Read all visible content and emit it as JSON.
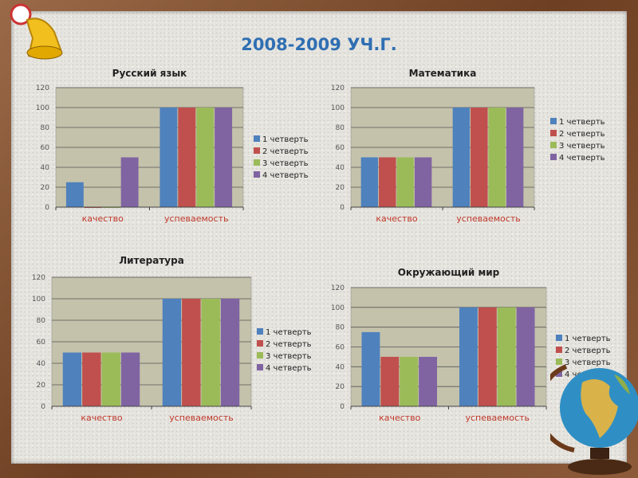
{
  "slide_title": "2008-2009 УЧ.Г.",
  "colors": {
    "q1": "#4f81bd",
    "q2": "#c0504d",
    "q3": "#9bbb59",
    "q4": "#8064a2",
    "plot_bg": "#c4c2ab",
    "title": "#2f6fb2",
    "category": "#c0392b"
  },
  "chart_data": [
    {
      "type": "bar",
      "title": "Русский язык",
      "categories": [
        "качество",
        "успеваемость"
      ],
      "ylim": [
        0,
        120
      ],
      "yticks": [
        0,
        20,
        40,
        60,
        80,
        100,
        120
      ],
      "legend": "right",
      "series": [
        {
          "name": "1 четверть",
          "values": [
            25,
            100
          ]
        },
        {
          "name": "2 четверть",
          "values": [
            0,
            100
          ]
        },
        {
          "name": "3 четверть",
          "values": [
            0,
            100
          ]
        },
        {
          "name": "4 четверть",
          "values": [
            50,
            100
          ]
        }
      ]
    },
    {
      "type": "bar",
      "title": "Математика",
      "categories": [
        "качество",
        "успеваемость"
      ],
      "ylim": [
        0,
        120
      ],
      "yticks": [
        0,
        20,
        40,
        60,
        80,
        100,
        120
      ],
      "legend": "right",
      "series": [
        {
          "name": "1 четверть",
          "values": [
            50,
            100
          ]
        },
        {
          "name": "2 четверть",
          "values": [
            50,
            100
          ]
        },
        {
          "name": "3 четверть",
          "values": [
            50,
            100
          ]
        },
        {
          "name": "4 четверть",
          "values": [
            50,
            100
          ]
        }
      ]
    },
    {
      "type": "bar",
      "title": "Литература",
      "categories": [
        "качество",
        "успеваемость"
      ],
      "ylim": [
        0,
        120
      ],
      "yticks": [
        0,
        20,
        40,
        60,
        80,
        100,
        120
      ],
      "legend": "right",
      "series": [
        {
          "name": "1 четверть",
          "values": [
            50,
            100
          ]
        },
        {
          "name": "2 четверть",
          "values": [
            50,
            100
          ]
        },
        {
          "name": "3 четверть",
          "values": [
            50,
            100
          ]
        },
        {
          "name": "4 четверть",
          "values": [
            50,
            100
          ]
        }
      ]
    },
    {
      "type": "bar",
      "title": "Окружающий мир",
      "categories": [
        "качество",
        "успеваемость"
      ],
      "ylim": [
        0,
        120
      ],
      "yticks": [
        0,
        20,
        40,
        60,
        80,
        100,
        120
      ],
      "legend": "right",
      "series": [
        {
          "name": "1 четверть",
          "values": [
            75,
            100
          ]
        },
        {
          "name": "2 четверть",
          "values": [
            50,
            100
          ]
        },
        {
          "name": "3 четверть",
          "values": [
            50,
            100
          ]
        },
        {
          "name": "4 четверть",
          "values": [
            50,
            100
          ]
        }
      ]
    }
  ]
}
